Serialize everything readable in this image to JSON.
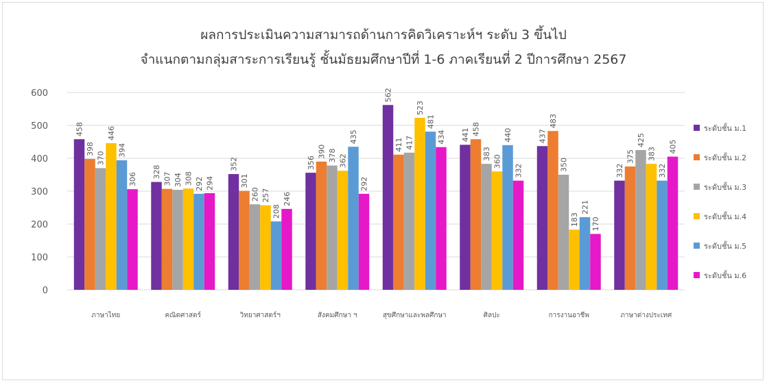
{
  "chart_data": {
    "type": "bar",
    "title": "ผลการประเมินความสามารถด้านการคิดวิเคราะห์ฯ ระดับ 3 ขึ้นไป",
    "subtitle": "จำแนกตามกลุ่มสาระการเรียนรู้ ชั้นมัธยมศึกษาปีที่ 1-6 ภาคเรียนที่ 2 ปีการศึกษา 2567",
    "xlabel": "",
    "ylabel": "",
    "ylim": [
      0,
      600
    ],
    "yticks": [
      0,
      100,
      200,
      300,
      400,
      500,
      600
    ],
    "grid": true,
    "legend_position": "right",
    "categories": [
      "ภาษาไทย",
      "คณิตศาสตร์",
      "วิทยาศาสตร์ฯ",
      "สังคมศึกษา ฯ",
      "สุขศึกษาและพลศึกษา",
      "ศิลปะ",
      "การงานอาชีพ",
      "ภาษาต่างประเทศ"
    ],
    "series": [
      {
        "name": "ระดับชั้น ม.1",
        "color": "#7030a0",
        "values": [
          458,
          328,
          352,
          356,
          562,
          441,
          437,
          332
        ]
      },
      {
        "name": "ระดับชั้น ม.2",
        "color": "#ed7d31",
        "values": [
          398,
          307,
          301,
          390,
          411,
          458,
          483,
          375
        ]
      },
      {
        "name": "ระดับชั้น ม.3",
        "color": "#a5a5a5",
        "values": [
          370,
          304,
          260,
          378,
          417,
          383,
          350,
          425
        ]
      },
      {
        "name": "ระดับชั้น ม.4",
        "color": "#ffc000",
        "values": [
          446,
          308,
          257,
          362,
          523,
          360,
          183,
          383
        ]
      },
      {
        "name": "ระดับชั้น ม.5",
        "color": "#5b9bd5",
        "values": [
          394,
          292,
          208,
          435,
          481,
          440,
          221,
          332
        ]
      },
      {
        "name": "ระดับชั้น ม.6",
        "color": "#e619c8",
        "values": [
          306,
          294,
          246,
          292,
          434,
          332,
          170,
          405
        ]
      }
    ]
  }
}
